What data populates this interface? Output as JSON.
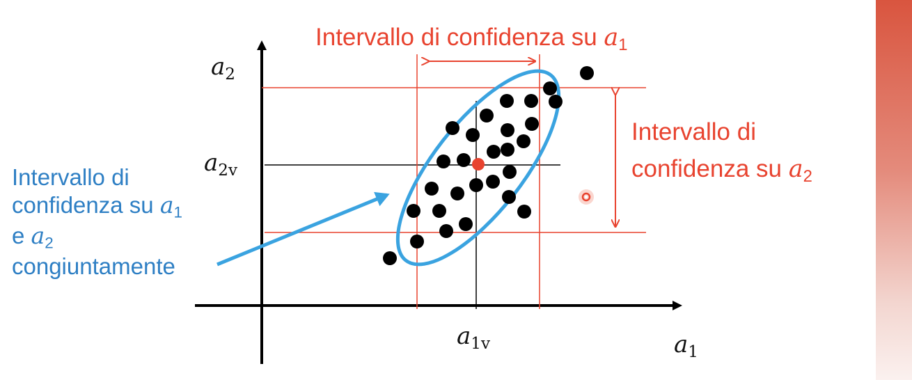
{
  "labels": {
    "y_axis": {
      "symbol": "a",
      "sub": "2"
    },
    "x_axis": {
      "symbol": "a",
      "sub": "1"
    },
    "y_value": {
      "symbol": "a",
      "sub": "2v"
    },
    "x_value": {
      "symbol": "a",
      "sub": "1v"
    },
    "interval_a1": {
      "text": "Intervallo di confidenza su ",
      "symbol": "a",
      "sub": "1"
    },
    "interval_a2": {
      "line1": "Intervallo di",
      "line2": "confidenza su ",
      "symbol": "a",
      "sub": "2"
    },
    "joint_interval": {
      "line1": "Intervallo di",
      "line2": "confidenza su ",
      "line2_symbol": "a",
      "line2_sub": "1",
      "line3_prefix": "e ",
      "line3_symbol": "a",
      "line3_sub": "2",
      "line4": "congiuntamente"
    }
  },
  "colors": {
    "axes": "#000000",
    "points": "#000000",
    "center_point": "#e8432f",
    "interval_lines": "#e8432f",
    "ellipse": "#3aa3e0",
    "joint_label": "#2e7fc4",
    "interval_label": "#e8432f"
  },
  "points_count": 29
}
